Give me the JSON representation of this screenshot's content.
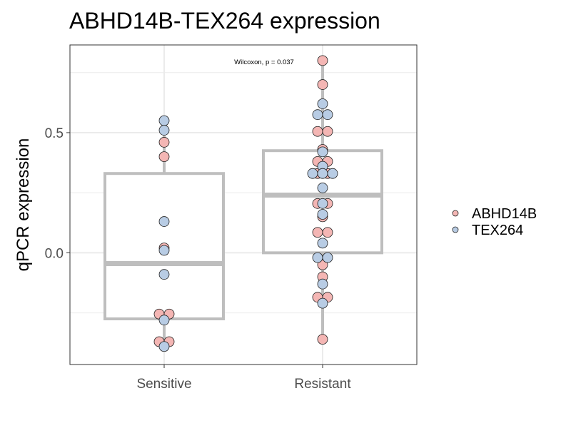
{
  "chart_data": {
    "type": "box",
    "title": "ABHD14B-TEX264 expression",
    "xlabel": "",
    "ylabel": "qPCR expression",
    "categories": [
      "Sensitive",
      "Resistant"
    ],
    "yticks": [
      0.0,
      0.5
    ],
    "ytick_labels": [
      "0.0",
      "0.5"
    ],
    "ylim": [
      -0.465,
      0.865
    ],
    "grid": true,
    "annotation": "Wilcoxon, p = 0.037",
    "legend_position": "right",
    "boxes": [
      {
        "category": "Sensitive",
        "min": -0.39,
        "q1": -0.275,
        "median": -0.045,
        "q3": 0.33,
        "max": 0.55
      },
      {
        "category": "Resistant",
        "min": -0.365,
        "q1": 0.0,
        "median": 0.24,
        "q3": 0.425,
        "max": 0.8
      }
    ],
    "series": [
      {
        "name": "ABHD14B",
        "color": "#F4B6B4",
        "points": [
          {
            "category": "Sensitive",
            "y": 0.46,
            "offset": 0
          },
          {
            "category": "Sensitive",
            "y": 0.4,
            "offset": 0
          },
          {
            "category": "Sensitive",
            "y": 0.02,
            "offset": 0
          },
          {
            "category": "Sensitive",
            "y": -0.255,
            "offset": -1
          },
          {
            "category": "Sensitive",
            "y": -0.255,
            "offset": 1
          },
          {
            "category": "Sensitive",
            "y": -0.37,
            "offset": -1
          },
          {
            "category": "Sensitive",
            "y": -0.37,
            "offset": 1
          },
          {
            "category": "Resistant",
            "y": 0.8,
            "offset": 0
          },
          {
            "category": "Resistant",
            "y": 0.7,
            "offset": 0
          },
          {
            "category": "Resistant",
            "y": 0.505,
            "offset": -1
          },
          {
            "category": "Resistant",
            "y": 0.505,
            "offset": 1
          },
          {
            "category": "Resistant",
            "y": 0.43,
            "offset": 0
          },
          {
            "category": "Resistant",
            "y": 0.38,
            "offset": -1
          },
          {
            "category": "Resistant",
            "y": 0.38,
            "offset": 1
          },
          {
            "category": "Resistant",
            "y": 0.33,
            "offset": -1
          },
          {
            "category": "Resistant",
            "y": 0.33,
            "offset": 1
          },
          {
            "category": "Resistant",
            "y": 0.205,
            "offset": -1
          },
          {
            "category": "Resistant",
            "y": 0.205,
            "offset": 1
          },
          {
            "category": "Resistant",
            "y": 0.15,
            "offset": 0
          },
          {
            "category": "Resistant",
            "y": 0.085,
            "offset": -1
          },
          {
            "category": "Resistant",
            "y": 0.085,
            "offset": 1
          },
          {
            "category": "Resistant",
            "y": -0.05,
            "offset": 0
          },
          {
            "category": "Resistant",
            "y": -0.1,
            "offset": 0
          },
          {
            "category": "Resistant",
            "y": -0.185,
            "offset": -1
          },
          {
            "category": "Resistant",
            "y": -0.185,
            "offset": 1
          },
          {
            "category": "Resistant",
            "y": -0.36,
            "offset": 0
          }
        ]
      },
      {
        "name": "TEX264",
        "color": "#B8CCE4",
        "points": [
          {
            "category": "Sensitive",
            "y": 0.55,
            "offset": 0
          },
          {
            "category": "Sensitive",
            "y": 0.51,
            "offset": 0
          },
          {
            "category": "Sensitive",
            "y": 0.13,
            "offset": 0
          },
          {
            "category": "Sensitive",
            "y": 0.01,
            "offset": 0
          },
          {
            "category": "Sensitive",
            "y": -0.09,
            "offset": 0
          },
          {
            "category": "Sensitive",
            "y": -0.28,
            "offset": 0
          },
          {
            "category": "Sensitive",
            "y": -0.39,
            "offset": 0
          },
          {
            "category": "Resistant",
            "y": 0.62,
            "offset": 0
          },
          {
            "category": "Resistant",
            "y": 0.575,
            "offset": -1
          },
          {
            "category": "Resistant",
            "y": 0.575,
            "offset": 1
          },
          {
            "category": "Resistant",
            "y": 0.42,
            "offset": 0
          },
          {
            "category": "Resistant",
            "y": 0.36,
            "offset": 0
          },
          {
            "category": "Resistant",
            "y": 0.33,
            "offset": -2
          },
          {
            "category": "Resistant",
            "y": 0.33,
            "offset": 0
          },
          {
            "category": "Resistant",
            "y": 0.33,
            "offset": 2
          },
          {
            "category": "Resistant",
            "y": 0.27,
            "offset": 0
          },
          {
            "category": "Resistant",
            "y": 0.205,
            "offset": 0
          },
          {
            "category": "Resistant",
            "y": 0.16,
            "offset": 0
          },
          {
            "category": "Resistant",
            "y": 0.04,
            "offset": 0
          },
          {
            "category": "Resistant",
            "y": -0.02,
            "offset": -1
          },
          {
            "category": "Resistant",
            "y": -0.02,
            "offset": 1
          },
          {
            "category": "Resistant",
            "y": -0.13,
            "offset": 0
          },
          {
            "category": "Resistant",
            "y": -0.21,
            "offset": 0
          }
        ]
      }
    ],
    "colors": {
      "box_stroke": "#BEBEBE",
      "grid": "#EBEBEB",
      "panel_border": "#333333",
      "point_stroke": "#222222"
    }
  }
}
